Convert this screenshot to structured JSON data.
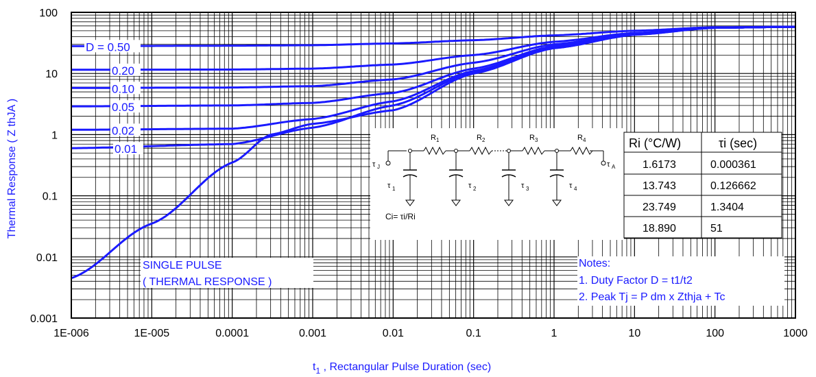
{
  "chart_data": {
    "type": "line",
    "xscale": "log",
    "yscale": "log",
    "xlim": [
      1e-06,
      1000
    ],
    "ylim": [
      0.001,
      100
    ],
    "xlabel_main": "t",
    "xlabel_sub": "1",
    "xlabel_rest": " , Rectangular Pulse Duration (sec)",
    "ylabel": "Thermal Response ( Z thJA )",
    "xticks": [
      "1E-006",
      "1E-005",
      "0.0001",
      "0.001",
      "0.01",
      "0.1",
      "1",
      "10",
      "100",
      "1000"
    ],
    "xtick_values": [
      1e-06,
      1e-05,
      0.0001,
      0.001,
      0.01,
      0.1,
      1,
      10,
      100,
      1000
    ],
    "yticks": [
      "100",
      "10",
      "1",
      "0.1",
      "0.01",
      "0.001"
    ],
    "ytick_values": [
      100,
      10,
      1,
      0.1,
      0.01,
      0.001
    ],
    "series": [
      {
        "name": "D = 0.50",
        "x": [
          1e-06,
          0.0001,
          0.001,
          0.01,
          0.1,
          1,
          10,
          100,
          1000
        ],
        "y": [
          28,
          28.5,
          29,
          31,
          35,
          42,
          50,
          57,
          58
        ]
      },
      {
        "name": "0.20",
        "x": [
          1e-06,
          0.0001,
          0.001,
          0.01,
          0.1,
          1,
          10,
          100,
          1000
        ],
        "y": [
          11.5,
          11.6,
          12,
          14,
          20,
          33,
          46,
          56,
          58
        ]
      },
      {
        "name": "0.10",
        "x": [
          1e-06,
          0.0001,
          0.001,
          0.01,
          0.1,
          1,
          10,
          100,
          1000
        ],
        "y": [
          5.8,
          5.9,
          6.2,
          8,
          15,
          30,
          45,
          56,
          58
        ]
      },
      {
        "name": "0.05",
        "x": [
          1e-06,
          0.0001,
          0.001,
          0.01,
          0.1,
          1,
          10,
          100,
          1000
        ],
        "y": [
          2.9,
          3.0,
          3.3,
          4.8,
          12,
          28,
          44,
          56,
          58
        ]
      },
      {
        "name": "0.02",
        "x": [
          1e-06,
          0.0001,
          0.001,
          0.01,
          0.1,
          1,
          10,
          100,
          1000
        ],
        "y": [
          1.2,
          1.25,
          1.8,
          3.5,
          11,
          27,
          44,
          56,
          58
        ]
      },
      {
        "name": "0.01",
        "x": [
          1e-06,
          0.0001,
          0.001,
          0.01,
          0.1,
          1,
          10,
          100,
          1000
        ],
        "y": [
          0.6,
          0.7,
          1.3,
          3.0,
          10.5,
          26,
          43,
          56,
          58
        ]
      },
      {
        "name": "SINGLE PULSE",
        "x": [
          1e-06,
          1e-05,
          0.0001,
          0.0003,
          0.001,
          0.01,
          0.1,
          1,
          10,
          100,
          1000
        ],
        "y": [
          0.0045,
          0.035,
          0.35,
          1.0,
          1.5,
          2.5,
          10,
          26,
          43,
          56,
          58
        ]
      }
    ],
    "annotations": {
      "single_pulse_1": "SINGLE PULSE",
      "single_pulse_2": "( THERMAL RESPONSE )",
      "notes_title": "Notes:",
      "note1": "1. Duty Factor D = t1/t2",
      "note2": "2. Peak Tj = P dm x Zthja + Tc"
    },
    "table": {
      "headers": [
        "Ri (°C/W)",
        "τi (sec)"
      ],
      "rows": [
        [
          "1.6173",
          "0.000361"
        ],
        [
          "13.743",
          "0.126662"
        ],
        [
          "23.749",
          "1.3404"
        ],
        [
          "18.890",
          "51"
        ]
      ]
    },
    "circuit": {
      "formula": "Ci= τi/Ri",
      "r_labels": [
        "R",
        "R",
        "R",
        "R"
      ],
      "r_subs": [
        "1",
        "2",
        "3",
        "4"
      ],
      "tau_labels": [
        "τ",
        "τ",
        "τ",
        "τ"
      ],
      "tau_subs": [
        "1",
        "2",
        "3",
        "4"
      ],
      "tau_j": "τ",
      "tau_j_sub": "J",
      "tau_a": "τ",
      "tau_a_sub": "A"
    },
    "colors": {
      "curve": "#1a1aff",
      "grid": "#000000"
    }
  }
}
